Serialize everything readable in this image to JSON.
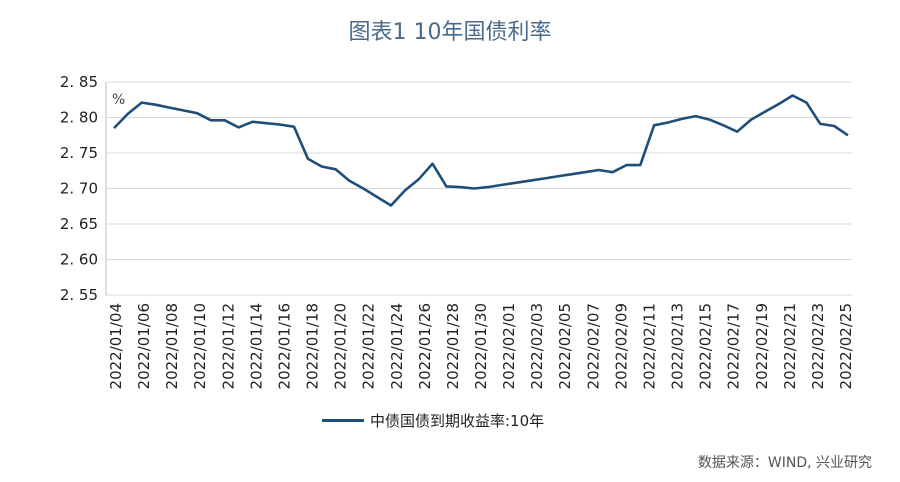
{
  "chart_data": {
    "type": "line",
    "title": "图表1  10年国债利率",
    "unit_label": "%",
    "ylim": [
      2.55,
      2.85
    ],
    "yticks": [
      "2. 55",
      "2. 60",
      "2. 65",
      "2. 70",
      "2. 75",
      "2. 80",
      "2. 85"
    ],
    "ytick_values": [
      2.55,
      2.6,
      2.65,
      2.7,
      2.75,
      2.8,
      2.85
    ],
    "xtick_labels": [
      "2022/01/04",
      "2022/01/06",
      "2022/01/08",
      "2022/01/10",
      "2022/01/12",
      "2022/01/14",
      "2022/01/16",
      "2022/01/18",
      "2022/01/20",
      "2022/01/22",
      "2022/01/24",
      "2022/01/26",
      "2022/01/28",
      "2022/01/30",
      "2022/02/01",
      "2022/02/03",
      "2022/02/05",
      "2022/02/07",
      "2022/02/09",
      "2022/02/11",
      "2022/02/13",
      "2022/02/15",
      "2022/02/17",
      "2022/02/19",
      "2022/02/21",
      "2022/02/23",
      "2022/02/25"
    ],
    "grid": true,
    "legend_position": "bottom",
    "series": [
      {
        "name": "中债国债到期收益率:10年",
        "color": "#1f4e79",
        "values": [
          2.785,
          2.805,
          2.821,
          2.818,
          2.814,
          2.81,
          2.806,
          2.796,
          2.796,
          2.786,
          2.794,
          2.792,
          2.79,
          2.787,
          2.742,
          2.731,
          2.727,
          2.711,
          2.7,
          2.688,
          2.676,
          2.697,
          2.713,
          2.735,
          2.703,
          2.702,
          2.7,
          2.702,
          2.705,
          2.708,
          2.711,
          2.714,
          2.717,
          2.72,
          2.723,
          2.726,
          2.723,
          2.733,
          2.733,
          2.789,
          2.793,
          2.798,
          2.802,
          2.797,
          2.789,
          2.78,
          2.797,
          2.808,
          2.819,
          2.831,
          2.821,
          2.791,
          2.788,
          2.775
        ]
      }
    ]
  },
  "source": "数据来源：WIND, 兴业研究"
}
